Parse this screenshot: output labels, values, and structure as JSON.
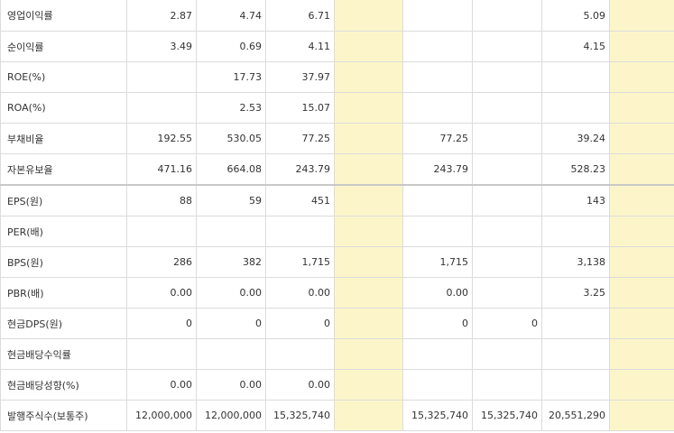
{
  "rows": [
    {
      "label": "영업이익률",
      "v": [
        "2.87",
        "4.74",
        "6.71",
        "",
        "",
        "",
        "5.09",
        ""
      ]
    },
    {
      "label": "순이익률",
      "v": [
        "3.49",
        "0.69",
        "4.11",
        "",
        "",
        "",
        "4.15",
        ""
      ]
    },
    {
      "label": "ROE(%)",
      "v": [
        "",
        "17.73",
        "37.97",
        "",
        "",
        "",
        "",
        ""
      ]
    },
    {
      "label": "ROA(%)",
      "v": [
        "",
        "2.53",
        "15.07",
        "",
        "",
        "",
        "",
        ""
      ]
    },
    {
      "label": "부채비율",
      "v": [
        "192.55",
        "530.05",
        "77.25",
        "",
        "77.25",
        "",
        "39.24",
        ""
      ]
    },
    {
      "label": "자본유보율",
      "v": [
        "471.16",
        "664.08",
        "243.79",
        "",
        "243.79",
        "",
        "528.23",
        ""
      ]
    },
    {
      "label": "EPS(원)",
      "v": [
        "88",
        "59",
        "451",
        "",
        "",
        "",
        "143",
        ""
      ]
    },
    {
      "label": "PER(배)",
      "v": [
        "",
        "",
        "",
        "",
        "",
        "",
        "",
        ""
      ]
    },
    {
      "label": "BPS(원)",
      "v": [
        "286",
        "382",
        "1,715",
        "",
        "1,715",
        "",
        "3,138",
        ""
      ]
    },
    {
      "label": "PBR(배)",
      "v": [
        "0.00",
        "0.00",
        "0.00",
        "",
        "0.00",
        "",
        "3.25",
        ""
      ]
    },
    {
      "label": "현금DPS(원)",
      "v": [
        "0",
        "0",
        "0",
        "",
        "0",
        "0",
        "",
        ""
      ]
    },
    {
      "label": "현금배당수익률",
      "v": [
        "",
        "",
        "",
        "",
        "",
        "",
        "",
        ""
      ]
    },
    {
      "label": "현금배당성향(%)",
      "v": [
        "0.00",
        "0.00",
        "0.00",
        "",
        "",
        "",
        "",
        ""
      ]
    },
    {
      "label": "발행주식수(보통주)",
      "v": [
        "12,000,000",
        "12,000,000",
        "15,325,740",
        "",
        "15,325,740",
        "15,325,740",
        "20,551,290",
        ""
      ]
    }
  ],
  "colors": {
    "highlight_column": "#fcf5c9",
    "grid_line": "#dcdcdc",
    "text": "#333333"
  }
}
